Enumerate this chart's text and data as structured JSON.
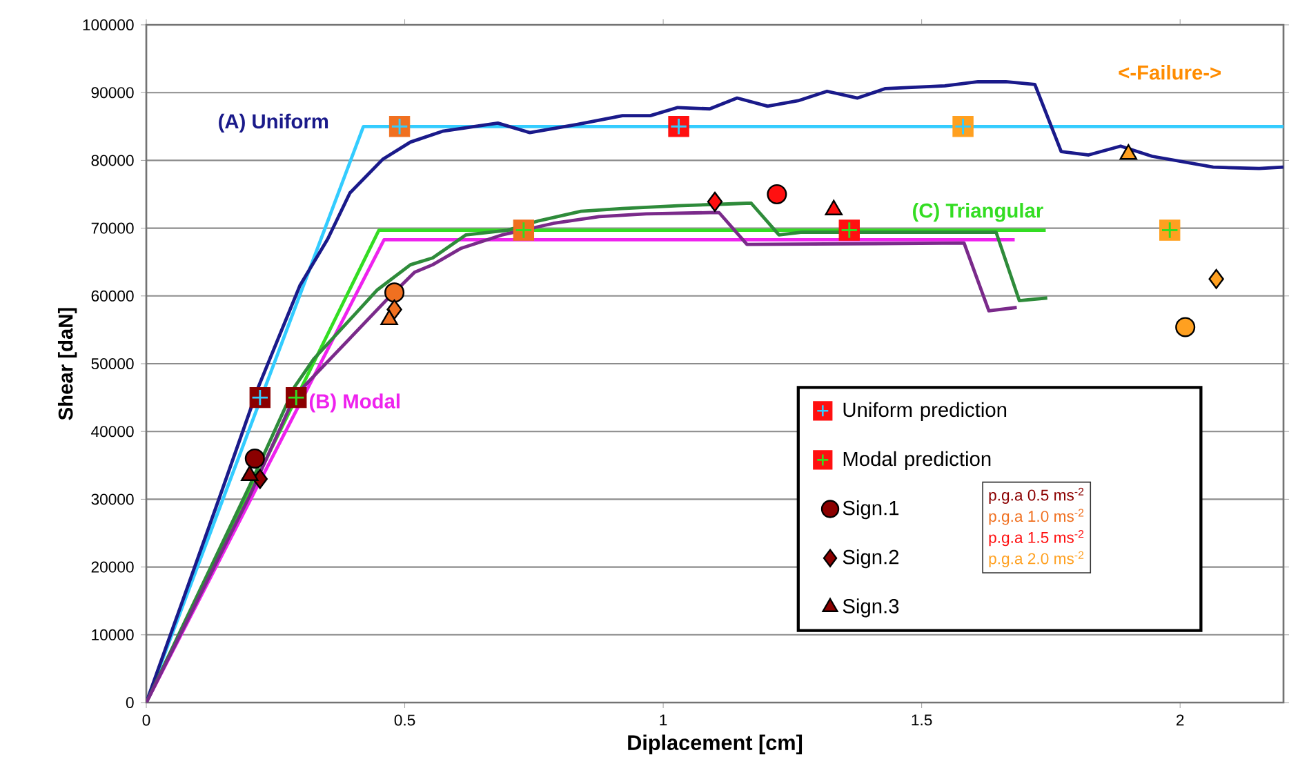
{
  "chart_data": {
    "type": "line",
    "xlabel": "Diplacement [cm]",
    "ylabel": "Shear [daN]",
    "xlim": [
      0,
      2.2
    ],
    "ylim": [
      0,
      100000
    ],
    "xticks": [
      0,
      0.5,
      1,
      1.5,
      2
    ],
    "yticks": [
      0,
      10000,
      20000,
      30000,
      40000,
      50000,
      60000,
      70000,
      80000,
      90000,
      100000
    ],
    "grid": "y",
    "legend": "bottom right",
    "series": [
      {
        "color": "#33ccff",
        "x": [
          0,
          0.42,
          2.2
        ],
        "values": [
          0,
          85000,
          85000
        ]
      },
      {
        "name": "(C) Triangular",
        "color": "#33dd22",
        "x": [
          0,
          0.45,
          1.74
        ],
        "values": [
          0,
          69700,
          69700
        ]
      },
      {
        "name": "(B) Modal",
        "color": "#ee22ee",
        "x": [
          0,
          0.46,
          1.68
        ],
        "values": [
          0,
          68300,
          68300
        ]
      },
      {
        "name": "(A) Uniform",
        "color": "#1a1a8a",
        "x": [
          0,
          0.145,
          0.217,
          0.297,
          0.351,
          0.394,
          0.458,
          0.511,
          0.573,
          0.68,
          0.742,
          0.833,
          0.921,
          0.975,
          1.028,
          1.09,
          1.143,
          1.202,
          1.261,
          1.317,
          1.376,
          1.43,
          1.545,
          1.609,
          1.663,
          1.719,
          1.77,
          1.823,
          1.885,
          1.946,
          2.064,
          2.153,
          2.2
        ],
        "values": [
          0,
          31000,
          46600,
          61500,
          68400,
          75200,
          80200,
          82700,
          84300,
          85500,
          84100,
          85300,
          86600,
          86600,
          87800,
          87600,
          89200,
          88000,
          88800,
          90200,
          89200,
          90600,
          91000,
          91600,
          91600,
          91200,
          81300,
          80800,
          82100,
          80600,
          79000,
          78800,
          79000
        ]
      },
      {
        "color": "#2e8b3a",
        "x": [
          0,
          0.2,
          0.287,
          0.324,
          0.447,
          0.511,
          0.554,
          0.618,
          0.699,
          0.76,
          0.841,
          0.921,
          1.028,
          1.1,
          1.17,
          1.224,
          1.269,
          1.644,
          1.689,
          1.743
        ],
        "values": [
          0,
          32000,
          46600,
          50700,
          60900,
          64600,
          65600,
          69000,
          69700,
          71100,
          72500,
          72900,
          73300,
          73500,
          73700,
          69000,
          69400,
          69400,
          59300,
          59700
        ]
      },
      {
        "color": "#7a2a8a",
        "x": [
          0,
          0.2,
          0.287,
          0.466,
          0.519,
          0.554,
          0.608,
          0.688,
          0.787,
          0.876,
          0.967,
          1.09,
          1.108,
          1.162,
          1.582,
          1.63,
          1.684
        ],
        "values": [
          0,
          30500,
          45200,
          59500,
          63500,
          64600,
          67000,
          69000,
          70700,
          71700,
          72100,
          72300,
          72300,
          67600,
          67800,
          57800,
          58300
        ]
      },
      {
        "type": "scatter",
        "name": "Uniform prediction",
        "marker": "square",
        "color": "#ff1010",
        "x": [
          0.22,
          0.49,
          1.03,
          1.58
        ],
        "values": [
          45000,
          85000,
          85000,
          85000
        ],
        "colors": [
          "#8b0000",
          "#f07020",
          "#ff1010",
          "#ffa020"
        ]
      },
      {
        "type": "scatter",
        "name": "Modal prediction",
        "marker": "square",
        "color": "#ff1010",
        "x": [
          0.29,
          0.73,
          1.36,
          1.98
        ],
        "values": [
          45000,
          69700,
          69700,
          69700
        ],
        "colors": [
          "#8b0000",
          "#f07020",
          "#ff1010",
          "#ffa020"
        ]
      },
      {
        "type": "scatter",
        "name": "Sign.1",
        "marker": "circle",
        "color": "#000000",
        "x": [
          0.21,
          0.48,
          1.22,
          2.01
        ],
        "values": [
          36000,
          60500,
          75000,
          55400
        ],
        "colors": [
          "#8b0000",
          "#f07020",
          "#ff1010",
          "#ffa020"
        ]
      },
      {
        "type": "scatter",
        "name": "Sign.2",
        "marker": "diamond",
        "color": "#000000",
        "x": [
          0.22,
          0.48,
          1.1,
          2.07
        ],
        "values": [
          33000,
          58000,
          73900,
          62500
        ],
        "colors": [
          "#8b0000",
          "#f07020",
          "#ff1010",
          "#ffa020"
        ]
      },
      {
        "type": "scatter",
        "name": "Sign.3",
        "marker": "triangle",
        "color": "#000000",
        "x": [
          0.2,
          0.47,
          1.33,
          1.9
        ],
        "values": [
          33500,
          56500,
          72700,
          80900
        ],
        "colors": [
          "#8b0000",
          "#f07020",
          "#ff1010",
          "#ffa020"
        ]
      }
    ],
    "annotations": [
      "<-Failure->",
      "p.g.a 0.5 ms$^{-2}$",
      "p.g.a 1.0 ms$^{-2}$",
      "p.g.a 1.5 ms$^{-2}$",
      "p.g.a 2.0 ms$^{-2}$"
    ]
  }
}
